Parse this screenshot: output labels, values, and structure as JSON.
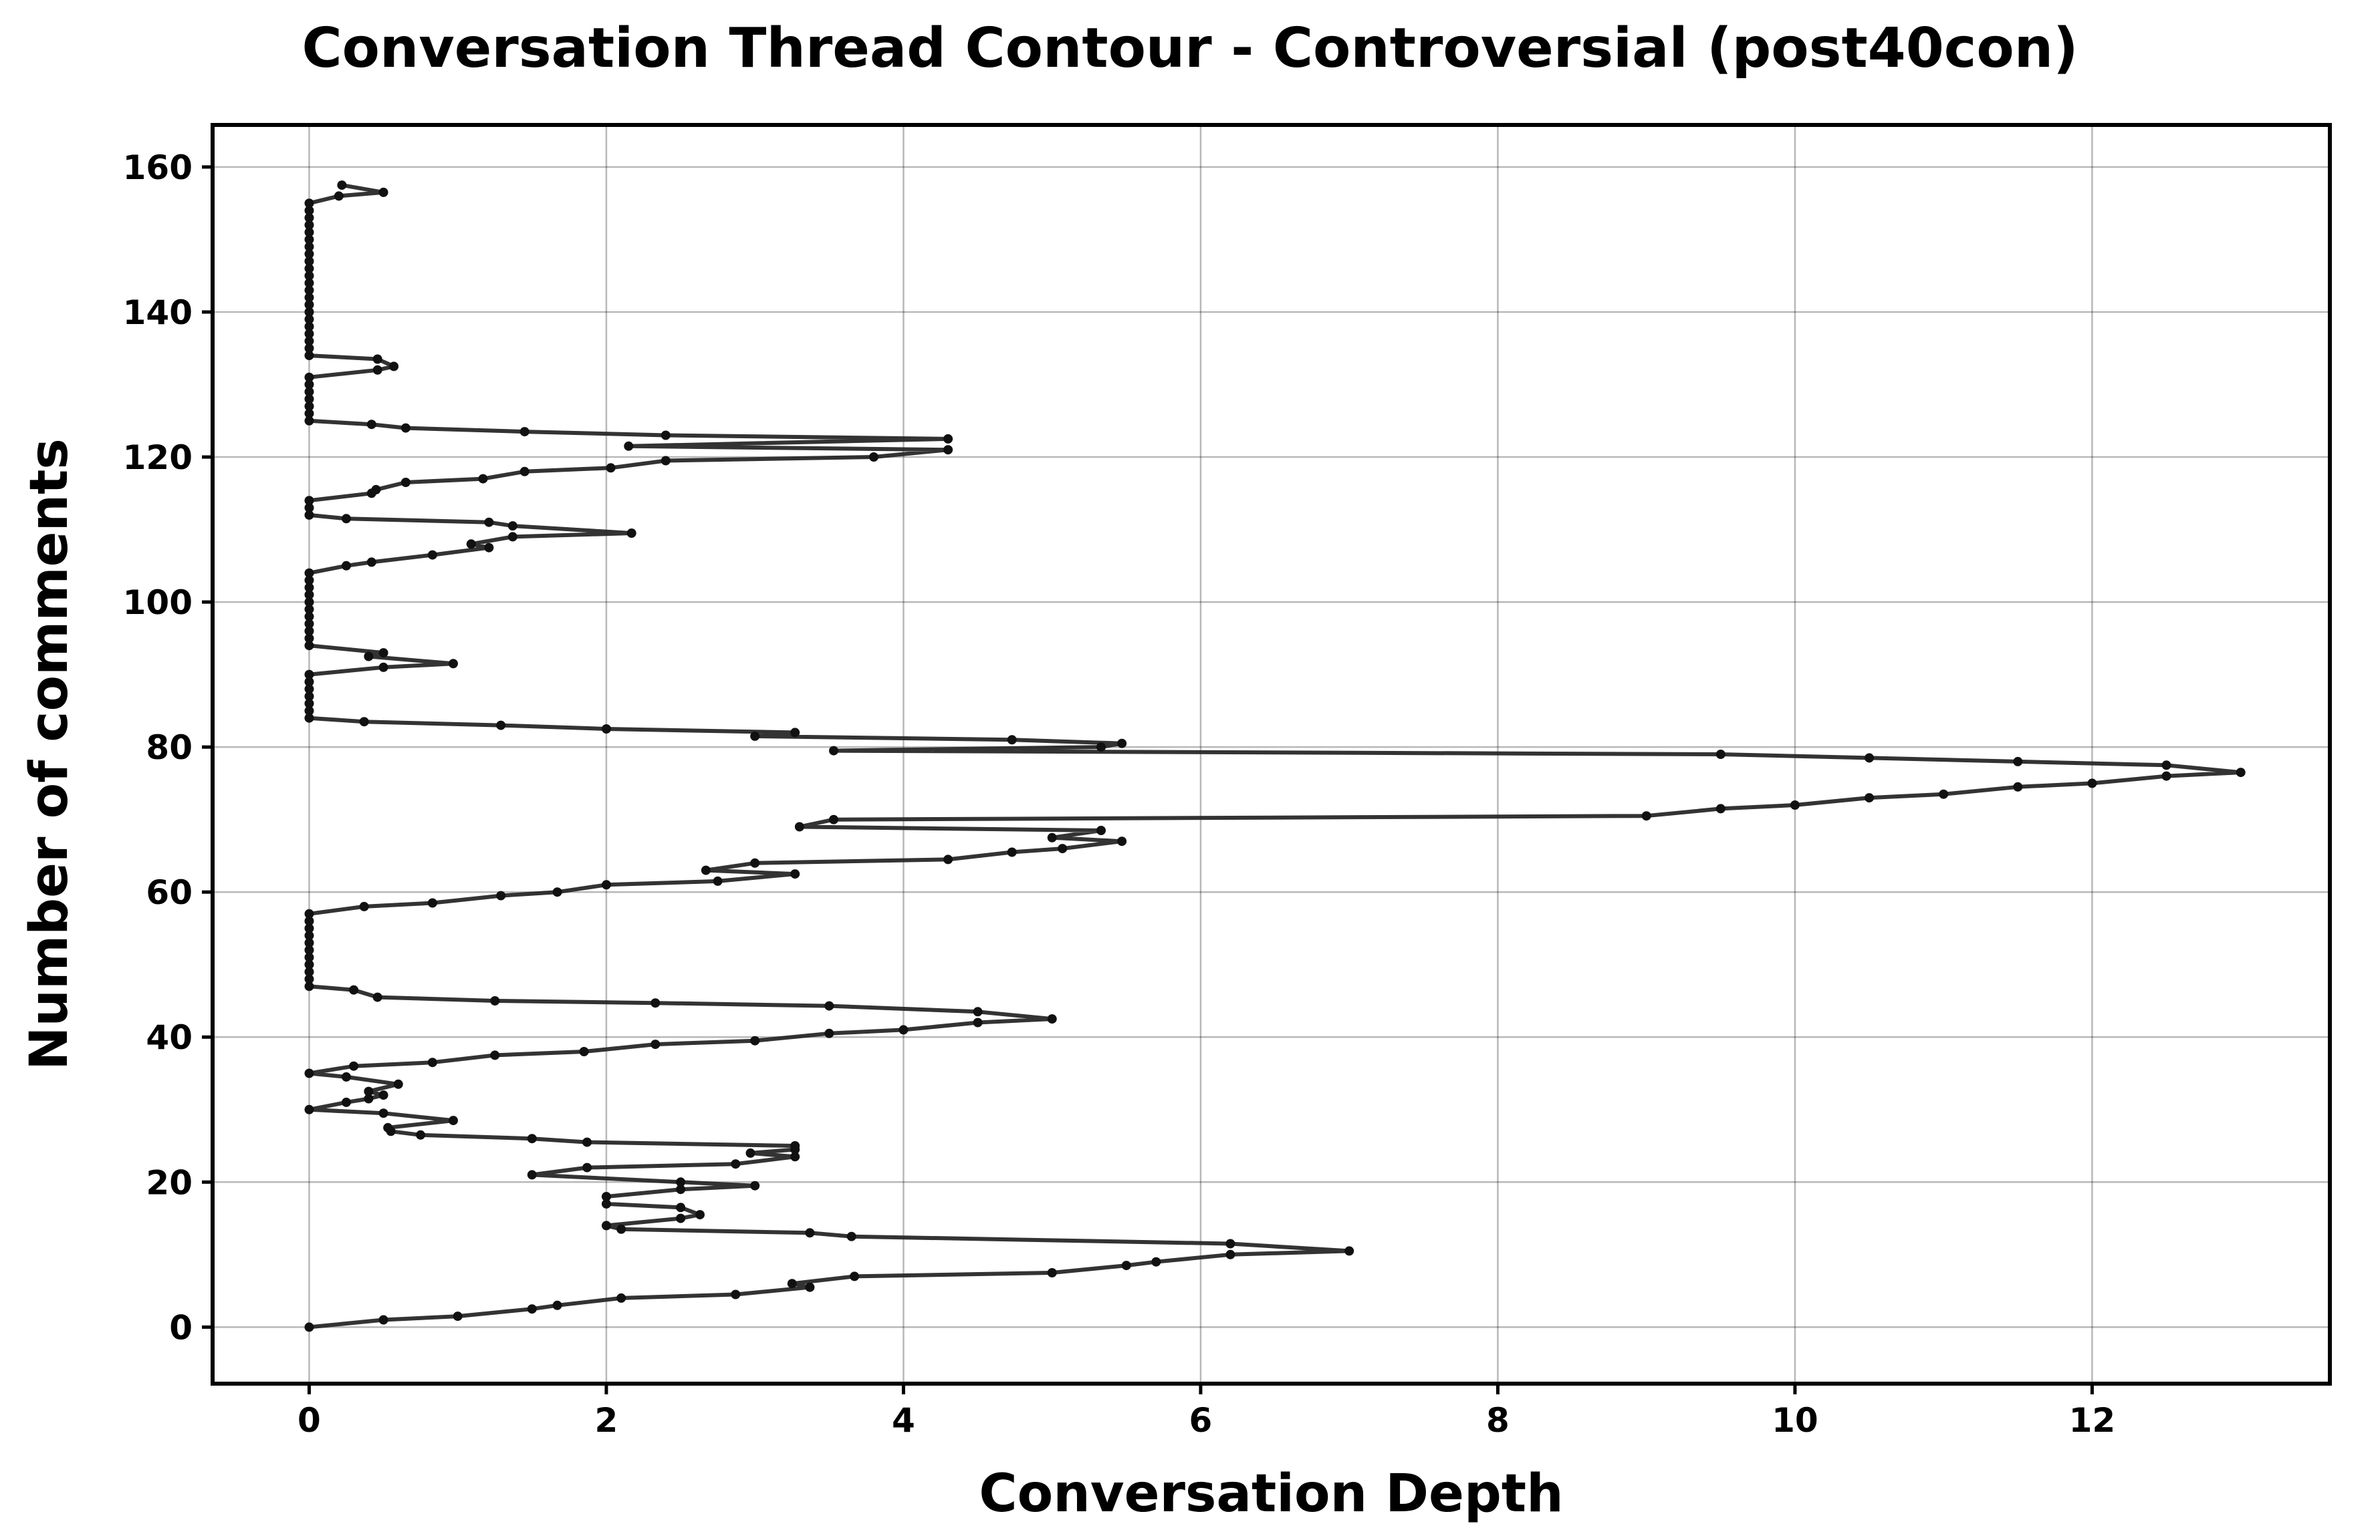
{
  "chart_data": {
    "type": "line",
    "title": "Conversation Thread Contour  - Controversial (post40con)",
    "xlabel": "Conversation Depth",
    "ylabel": "Number of comments",
    "xlim": [
      -0.65,
      13.6
    ],
    "ylim": [
      -7.8,
      165.8
    ],
    "xticks": [
      0,
      2,
      4,
      6,
      8,
      10,
      12
    ],
    "yticks": [
      0,
      20,
      40,
      60,
      80,
      100,
      120,
      140,
      160
    ],
    "grid": true,
    "legend": "none",
    "colors": {
      "line": "#222222",
      "marker": "#111111"
    },
    "series": [
      {
        "points": [
          [
            0,
            0
          ],
          [
            0.5,
            1
          ],
          [
            1,
            1.5
          ],
          [
            1.5,
            2.5
          ],
          [
            1.67,
            3
          ],
          [
            2.1,
            4
          ],
          [
            2.87,
            4.5
          ],
          [
            3.37,
            5.5
          ],
          [
            3.25,
            6
          ],
          [
            3.67,
            7
          ],
          [
            5,
            7.5
          ],
          [
            5.5,
            8.5
          ],
          [
            5.7,
            9
          ],
          [
            6.2,
            10
          ],
          [
            7,
            10.5
          ],
          [
            6.2,
            11.5
          ],
          [
            3.65,
            12.5
          ],
          [
            3.37,
            13
          ],
          [
            2.1,
            13.5
          ],
          [
            2,
            14
          ],
          [
            2.5,
            15
          ],
          [
            2.63,
            15.5
          ],
          [
            2.5,
            16.5
          ],
          [
            2,
            17
          ],
          [
            2,
            18
          ],
          [
            2.5,
            19
          ],
          [
            3,
            19.5
          ],
          [
            2.5,
            20
          ],
          [
            1.5,
            21
          ],
          [
            1.87,
            22
          ],
          [
            2.87,
            22.5
          ],
          [
            3.27,
            23.5
          ],
          [
            2.97,
            24
          ],
          [
            3.27,
            24.5
          ],
          [
            3.27,
            25
          ],
          [
            1.87,
            25.5
          ],
          [
            1.5,
            26
          ],
          [
            0.75,
            26.5
          ],
          [
            0.55,
            27
          ],
          [
            0.53,
            27.5
          ],
          [
            0.97,
            28.5
          ],
          [
            0.5,
            29.5
          ],
          [
            0,
            30
          ],
          [
            0.25,
            31
          ],
          [
            0.4,
            31.5
          ],
          [
            0.5,
            32
          ],
          [
            0.4,
            32.5
          ],
          [
            0.6,
            33.5
          ],
          [
            0.25,
            34.5
          ],
          [
            0,
            35
          ],
          [
            0.3,
            36
          ],
          [
            0.83,
            36.5
          ],
          [
            1.25,
            37.5
          ],
          [
            1.85,
            38
          ],
          [
            2.33,
            39
          ],
          [
            3,
            39.5
          ],
          [
            3.5,
            40.5
          ],
          [
            4,
            41
          ],
          [
            4.5,
            42
          ],
          [
            5,
            42.5
          ],
          [
            4.5,
            43.5
          ],
          [
            3.5,
            44.3
          ],
          [
            2.33,
            44.7
          ],
          [
            1.25,
            45
          ],
          [
            0.46,
            45.5
          ],
          [
            0.3,
            46.5
          ],
          [
            0,
            47
          ],
          [
            0,
            48
          ],
          [
            0,
            49
          ],
          [
            0,
            50
          ],
          [
            0,
            51
          ],
          [
            0,
            52
          ],
          [
            0,
            53
          ],
          [
            0,
            54
          ],
          [
            0,
            55
          ],
          [
            0,
            56
          ],
          [
            0,
            57
          ],
          [
            0.37,
            58
          ],
          [
            0.83,
            58.5
          ],
          [
            1.29,
            59.5
          ],
          [
            1.67,
            60
          ],
          [
            2,
            61
          ],
          [
            2.75,
            61.5
          ],
          [
            3.27,
            62.5
          ],
          [
            2.67,
            63
          ],
          [
            3,
            64
          ],
          [
            4.3,
            64.5
          ],
          [
            4.73,
            65.5
          ],
          [
            5.07,
            66
          ],
          [
            5.47,
            67
          ],
          [
            5,
            67.5
          ],
          [
            5.33,
            68.5
          ],
          [
            3.3,
            69
          ],
          [
            3.53,
            70
          ],
          [
            9,
            70.5
          ],
          [
            9.5,
            71.5
          ],
          [
            10,
            72
          ],
          [
            10.5,
            73
          ],
          [
            11,
            73.5
          ],
          [
            11.5,
            74.5
          ],
          [
            12,
            75
          ],
          [
            12.5,
            76
          ],
          [
            13,
            76.5
          ],
          [
            12.5,
            77.5
          ],
          [
            11.5,
            78
          ],
          [
            10.5,
            78.5
          ],
          [
            9.5,
            79
          ],
          [
            3.53,
            79.5
          ],
          [
            5.33,
            80
          ],
          [
            5.47,
            80.5
          ],
          [
            4.73,
            81
          ],
          [
            3,
            81.5
          ],
          [
            3.27,
            82
          ],
          [
            2,
            82.5
          ],
          [
            1.29,
            83
          ],
          [
            0.37,
            83.5
          ],
          [
            0,
            84
          ],
          [
            0,
            85
          ],
          [
            0,
            86
          ],
          [
            0,
            87
          ],
          [
            0,
            88
          ],
          [
            0,
            89
          ],
          [
            0,
            90
          ],
          [
            0.5,
            91
          ],
          [
            0.97,
            91.5
          ],
          [
            0.4,
            92.5
          ],
          [
            0.5,
            93
          ],
          [
            0,
            94
          ],
          [
            0,
            95
          ],
          [
            0,
            96
          ],
          [
            0,
            97
          ],
          [
            0,
            98
          ],
          [
            0,
            99
          ],
          [
            0,
            100
          ],
          [
            0,
            101
          ],
          [
            0,
            102
          ],
          [
            0,
            103
          ],
          [
            0,
            104
          ],
          [
            0.25,
            105
          ],
          [
            0.42,
            105.5
          ],
          [
            0.83,
            106.5
          ],
          [
            1.21,
            107.5
          ],
          [
            1.09,
            108
          ],
          [
            1.37,
            109
          ],
          [
            2.17,
            109.5
          ],
          [
            1.37,
            110.5
          ],
          [
            1.21,
            111
          ],
          [
            0.25,
            111.5
          ],
          [
            0,
            112
          ],
          [
            0,
            113
          ],
          [
            0,
            114
          ],
          [
            0.42,
            115
          ],
          [
            0.45,
            115.5
          ],
          [
            0.65,
            116.5
          ],
          [
            1.17,
            117
          ],
          [
            1.45,
            118
          ],
          [
            2.03,
            118.5
          ],
          [
            2.4,
            119.5
          ],
          [
            3.8,
            120
          ],
          [
            4.3,
            121
          ],
          [
            2.15,
            121.5
          ],
          [
            4.3,
            122.5
          ],
          [
            2.4,
            123
          ],
          [
            1.45,
            123.5
          ],
          [
            0.65,
            124
          ],
          [
            0.42,
            124.5
          ],
          [
            0,
            125
          ],
          [
            0,
            126
          ],
          [
            0,
            127
          ],
          [
            0,
            128
          ],
          [
            0,
            129
          ],
          [
            0,
            130
          ],
          [
            0,
            131
          ],
          [
            0.46,
            132
          ],
          [
            0.57,
            132.5
          ],
          [
            0.46,
            133.5
          ],
          [
            0,
            134
          ],
          [
            0,
            135
          ],
          [
            0,
            136
          ],
          [
            0,
            137
          ],
          [
            0,
            138
          ],
          [
            0,
            139
          ],
          [
            0,
            140
          ],
          [
            0,
            141
          ],
          [
            0,
            142
          ],
          [
            0,
            143
          ],
          [
            0,
            144
          ],
          [
            0,
            145
          ],
          [
            0,
            146
          ],
          [
            0,
            147
          ],
          [
            0,
            148
          ],
          [
            0,
            149
          ],
          [
            0,
            150
          ],
          [
            0,
            151
          ],
          [
            0,
            152
          ],
          [
            0,
            153
          ],
          [
            0,
            154
          ],
          [
            0,
            155
          ],
          [
            0.2,
            156
          ],
          [
            0.5,
            156.5
          ],
          [
            0.22,
            157.5
          ]
        ]
      }
    ]
  }
}
